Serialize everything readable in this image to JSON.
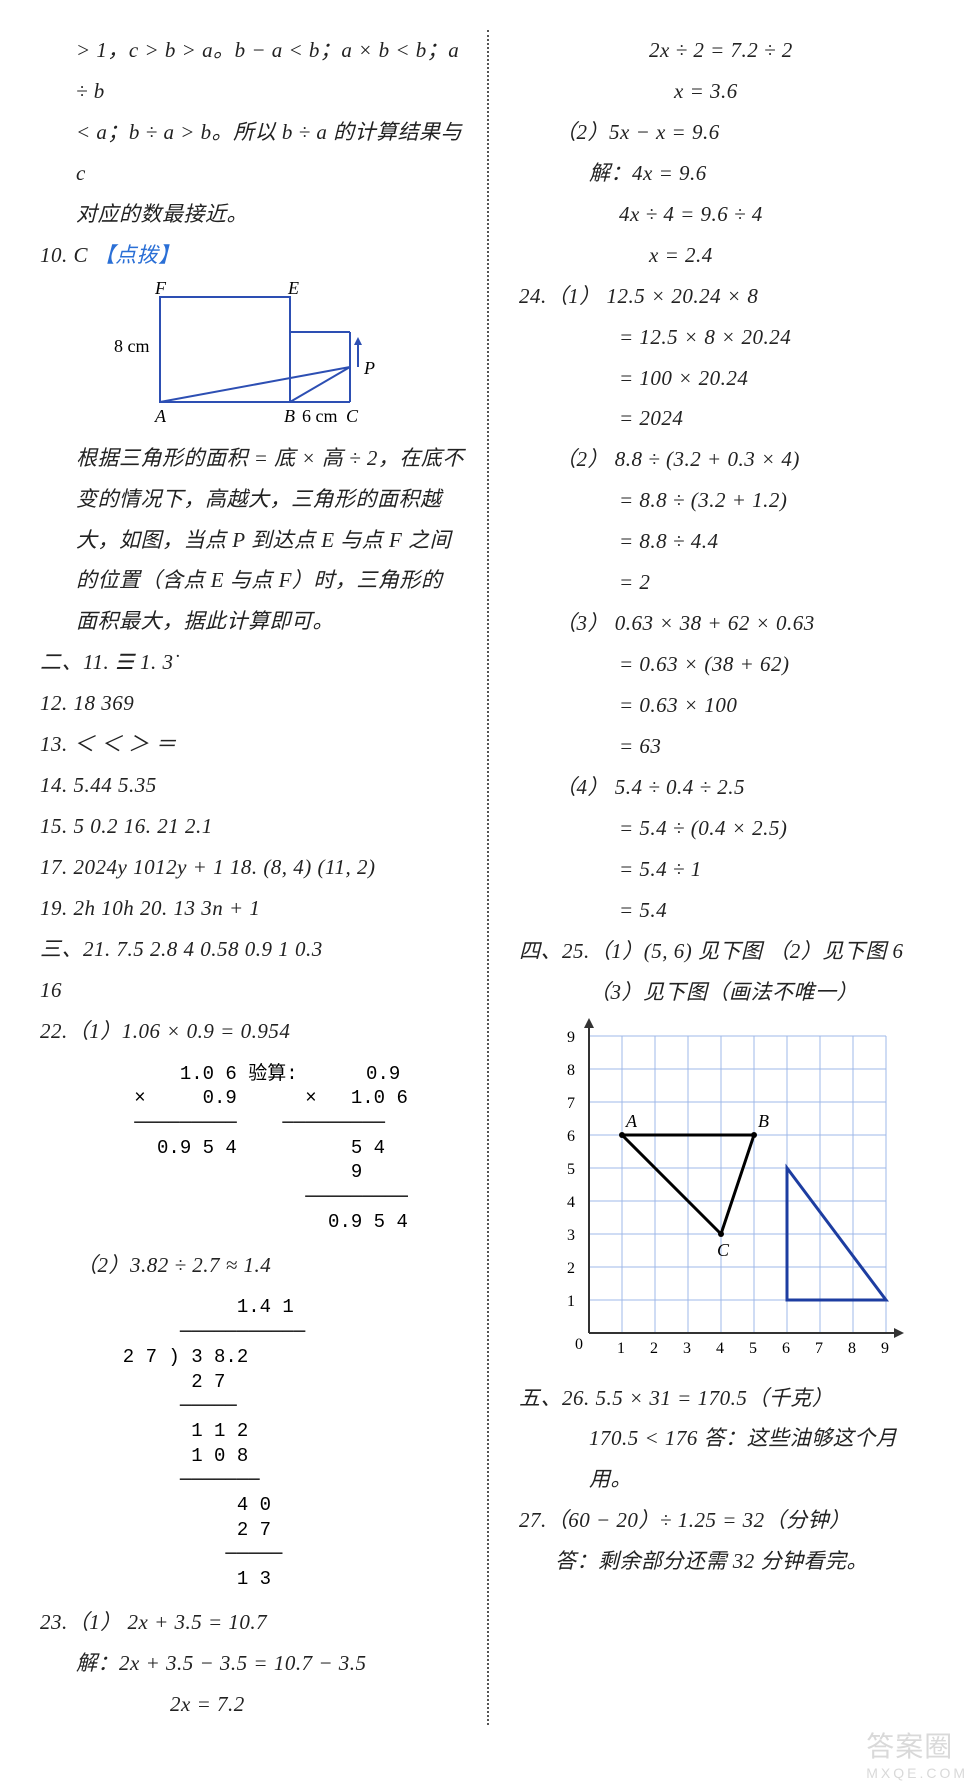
{
  "left": {
    "intro_l1": "> 1，c > b > a。b − a < b；a × b < b；a ÷ b",
    "intro_l2": "< a；b ÷ a > b。所以 b ÷ a 的计算结果与 c",
    "intro_l3": "对应的数最接近。",
    "q10_head": "10.  C",
    "q10_hint": "  【点拨】",
    "diagram": {
      "F": "F",
      "E": "E",
      "P": "P",
      "A": "A",
      "B": "B",
      "C": "C",
      "h_label": "8 cm",
      "w_label": "6 cm"
    },
    "q10_e1": "根据三角形的面积 = 底 × 高 ÷ 2，在底不",
    "q10_e2": "变的情况下，高越大，三角形的面积越",
    "q10_e3": "大，如图，当点 P 到达点 E 与点 F 之间",
    "q10_e4": "的位置（含点 E 与点 F）时，三角形的",
    "q10_e5": "面积最大，据此计算即可。",
    "sec2_11": "二、11.  ☰  1. 3̇",
    "q12": "12.  18   369",
    "q13": "13.  ＜   ＜   ＞   ＝",
    "q14": "14.  5.44   5.35",
    "q15_16": "15.  5   0.2   16.  21   2.1",
    "q17_18": "17.  2024y   1012y + 1   18.  (8, 4)   (11, 2)",
    "q19_20": "19.  2h   10h   20.  13   3n + 1",
    "sec3_21a": "三、21.  7.5   2.8   4   0.58   0.9   1   0.3",
    "sec3_21b": "   16",
    "q22_1": "22.（1）1.06 × 0.9 = 0.954",
    "vm1": "       1.0 6 验算:      0.9\n   ×     0.9      ×   1.0 6\n   ─────────    ─────────\n     0.9 5 4          5 4\n                      9\n                  ─────────\n                    0.9 5 4",
    "q22_2": "（2）3.82 ÷ 2.7 ≈ 1.4",
    "vm2": "            1.4 1\n       ───────────\n  2 7 ) 3 8.2\n        2 7\n       ─────\n        1 1 2\n        1 0 8\n       ───────\n            4 0\n            2 7\n           ─────\n            1 3",
    "q23_1": "23.（1）   2x + 3.5 = 10.7",
    "q23_1s1": "解：2x + 3.5 − 3.5 = 10.7 − 3.5",
    "q23_1s2": "2x = 7.2"
  },
  "right": {
    "q23_1s3": "2x ÷ 2 = 7.2 ÷ 2",
    "q23_1s4": "x = 3.6",
    "q23_2": "（2）5x − x = 9.6",
    "q23_2s1": "解：4x = 9.6",
    "q23_2s2": "4x ÷ 4 = 9.6 ÷ 4",
    "q23_2s3": "x = 2.4",
    "q24_1": "24.（1）   12.5 × 20.24 × 8",
    "q24_1s1": "= 12.5 × 8 × 20.24",
    "q24_1s2": "= 100 × 20.24",
    "q24_1s3": "= 2024",
    "q24_2": "（2）   8.8 ÷ (3.2 + 0.3 × 4)",
    "q24_2s1": "= 8.8 ÷ (3.2 + 1.2)",
    "q24_2s2": "= 8.8 ÷ 4.4",
    "q24_2s3": "= 2",
    "q24_3": "（3）   0.63 × 38 + 62 × 0.63",
    "q24_3s1": "= 0.63 × (38 + 62)",
    "q24_3s2": "= 0.63 × 100",
    "q24_3s3": "= 63",
    "q24_4": "（4）   5.4 ÷ 0.4 ÷ 2.5",
    "q24_4s1": "= 5.4 ÷ (0.4 × 2.5)",
    "q24_4s2": "= 5.4 ÷ 1",
    "q24_4s3": "= 5.4",
    "sec4_25a": "四、25.（1）(5, 6)  见下图   （2）见下图   6",
    "sec4_25b": "（3）见下图（画法不唯一）",
    "grid": {
      "axis_color": "#333333",
      "grid_color": "#9fb9e8",
      "poly_color": "#000000",
      "tri_color": "#1d3da1",
      "size": 9,
      "x_ticks": [
        "1",
        "2",
        "3",
        "4",
        "5",
        "6",
        "7",
        "8",
        "9"
      ],
      "y_ticks": [
        "1",
        "2",
        "3",
        "4",
        "5",
        "6",
        "7",
        "8",
        "9"
      ],
      "A_label": "A",
      "B_label": "B",
      "C_label": "C",
      "A": [
        1,
        6
      ],
      "B": [
        5,
        6
      ],
      "C": [
        4,
        3
      ],
      "tri2": [
        [
          6,
          5
        ],
        [
          6,
          1
        ],
        [
          9,
          1
        ]
      ]
    },
    "sec5_26a": "五、26.  5.5 × 31 = 170.5（千克）",
    "sec5_26b": "170.5 < 176   答：这些油够这个月用。",
    "q27a": "27.（60 − 20）÷ 1.25 = 32（分钟）",
    "q27b": "答：剩余部分还需 32 分钟看完。"
  },
  "watermark": {
    "main": "答案圈",
    "sub": "MXQE.COM"
  }
}
